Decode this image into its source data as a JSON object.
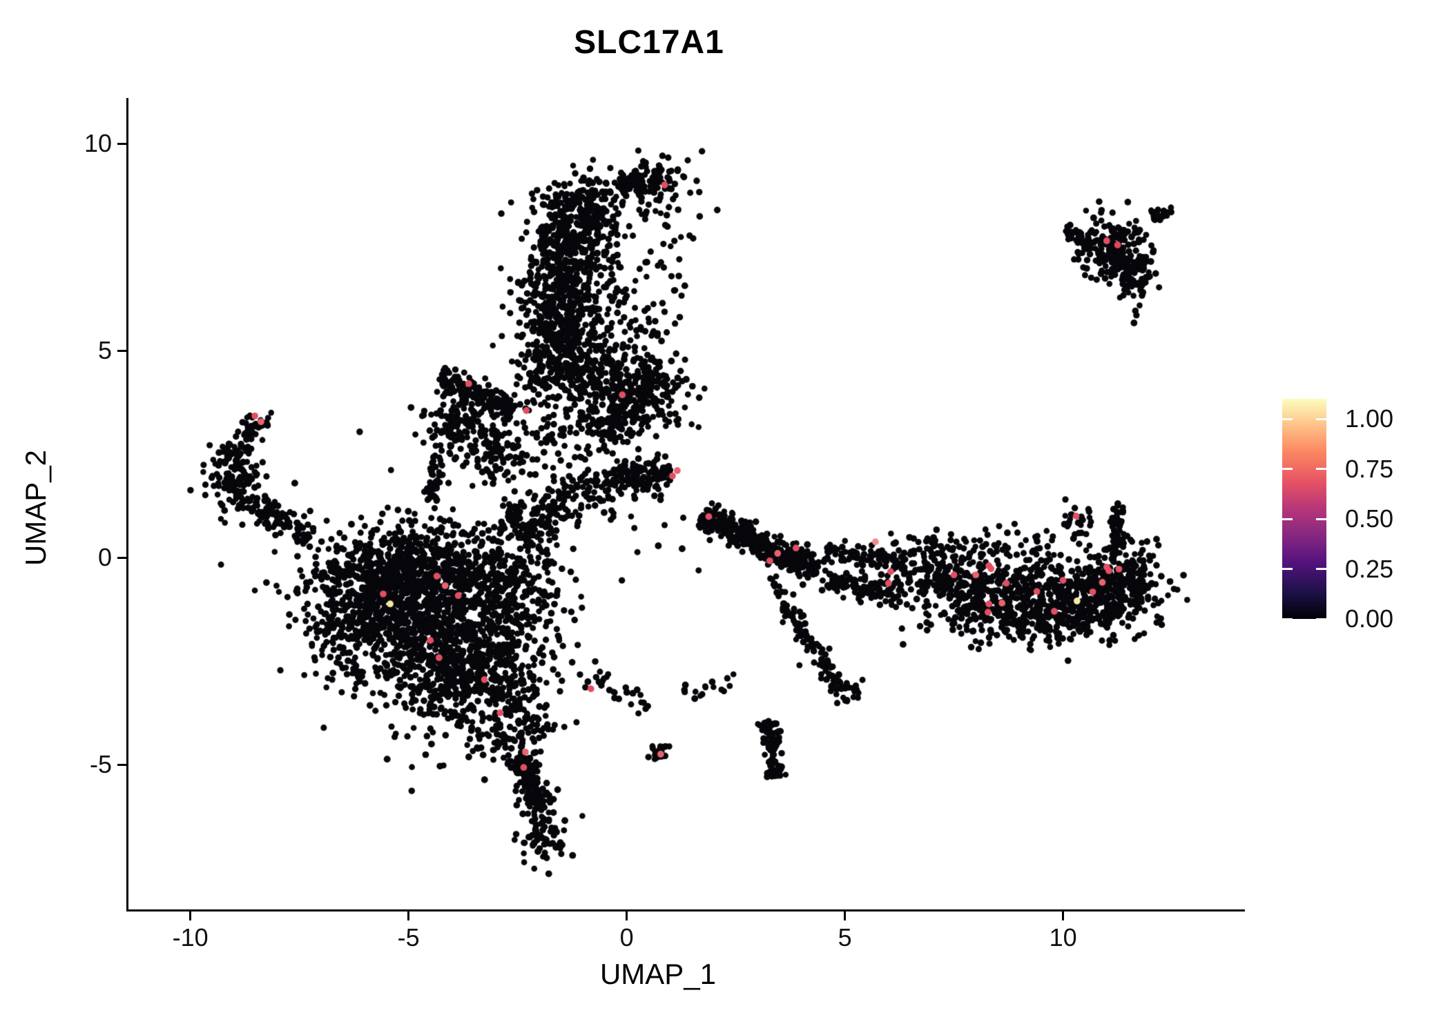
{
  "chart_data": {
    "type": "scatter",
    "title": "SLC17A1",
    "xlabel": "UMAP_1",
    "ylabel": "UMAP_2",
    "grid": false,
    "axes": {
      "xlim": [
        -11.4,
        14.2
      ],
      "ylim": [
        -8.6,
        11.1
      ],
      "x_ticks": [
        {
          "value": -10,
          "label": "-10"
        },
        {
          "value": -5,
          "label": "-5"
        },
        {
          "value": 0,
          "label": "0"
        },
        {
          "value": 5,
          "label": "5"
        },
        {
          "value": 10,
          "label": "10"
        }
      ],
      "y_ticks": [
        {
          "value": 10,
          "label": "10"
        },
        {
          "value": 5,
          "label": "5"
        },
        {
          "value": 0,
          "label": "0"
        },
        {
          "value": -5,
          "label": "-5"
        }
      ]
    },
    "legend": {
      "position": "right",
      "ticks": [
        {
          "value": 1.0,
          "label": "1.00"
        },
        {
          "value": 0.75,
          "label": "0.75"
        },
        {
          "value": 0.5,
          "label": "0.50"
        },
        {
          "value": 0.25,
          "label": "0.25"
        },
        {
          "value": 0.0,
          "label": "0.00"
        }
      ],
      "colormap": "magma",
      "colormap_stops": [
        "#000004",
        "#1d1147",
        "#51127c",
        "#822681",
        "#b63679",
        "#e65164",
        "#fb8861",
        "#fec287",
        "#fcfdbf"
      ]
    },
    "point_style": {
      "radius": 4.6,
      "base_color": "#07070b"
    },
    "clusters": [
      {
        "kind": "blob",
        "cx": -4.9,
        "cy": -1.3,
        "sx": 1.05,
        "sy": 0.95,
        "n": 820
      },
      {
        "kind": "blob",
        "cx": -3.7,
        "cy": -2.7,
        "sx": 0.75,
        "sy": 0.75,
        "n": 420
      },
      {
        "kind": "blob",
        "cx": -5.7,
        "cy": -0.45,
        "sx": 0.85,
        "sy": 0.5,
        "n": 300
      },
      {
        "kind": "blob",
        "cx": -3.1,
        "cy": -0.6,
        "sx": 0.8,
        "sy": 0.7,
        "n": 260
      },
      {
        "kind": "blob",
        "cx": -4.2,
        "cy": 0.2,
        "sx": 0.9,
        "sy": 0.4,
        "n": 150
      },
      {
        "kind": "blob",
        "cx": -6.3,
        "cy": -1.6,
        "sx": 0.5,
        "sy": 0.6,
        "n": 130
      },
      {
        "kind": "blob",
        "cx": -2.7,
        "cy": -3.9,
        "sx": 0.5,
        "sy": 0.6,
        "n": 150
      },
      {
        "kind": "blob",
        "cx": -2.35,
        "cy": -1.6,
        "sx": 0.4,
        "sy": 0.9,
        "n": 110
      },
      {
        "kind": "blob",
        "cx": -4.6,
        "cy": -1.4,
        "sx": 1.6,
        "sy": 1.4,
        "n": 180
      },
      {
        "kind": "line",
        "x1": -2.45,
        "y1": -4.8,
        "x2": -1.95,
        "y2": -6.1,
        "w": 0.32,
        "n": 160
      },
      {
        "kind": "blob",
        "cx": -1.95,
        "cy": -6.6,
        "sx": 0.28,
        "sy": 0.38,
        "n": 80
      },
      {
        "kind": "line",
        "x1": -7.3,
        "y1": 0.45,
        "x2": -8.6,
        "y2": 1.35,
        "w": 0.3,
        "n": 90
      },
      {
        "kind": "blob",
        "cx": -8.95,
        "cy": 1.75,
        "sx": 0.35,
        "sy": 0.4,
        "n": 110
      },
      {
        "kind": "line",
        "x1": -9.15,
        "y1": 2.2,
        "x2": -8.45,
        "y2": 3.35,
        "w": 0.25,
        "n": 70
      },
      {
        "kind": "blob",
        "cx": -8.4,
        "cy": 3.25,
        "sx": 0.15,
        "sy": 0.12,
        "n": 12
      },
      {
        "kind": "line",
        "x1": -4.3,
        "y1": 4.35,
        "x2": -2.6,
        "y2": 3.5,
        "w": 0.3,
        "n": 140
      },
      {
        "kind": "blob",
        "cx": -3.7,
        "cy": 3.1,
        "sx": 0.55,
        "sy": 0.5,
        "n": 160
      },
      {
        "kind": "line",
        "x1": -4.35,
        "y1": 2.5,
        "x2": -4.45,
        "y2": 1.35,
        "w": 0.18,
        "n": 45
      },
      {
        "kind": "blob",
        "cx": -2.9,
        "cy": 2.5,
        "sx": 0.4,
        "sy": 0.4,
        "n": 55
      },
      {
        "kind": "blob",
        "cx": 0.55,
        "cy": 9.1,
        "sx": 0.38,
        "sy": 0.28,
        "n": 100
      },
      {
        "kind": "blob",
        "cx": -0.95,
        "cy": 8.45,
        "sx": 0.5,
        "sy": 0.4,
        "n": 190
      },
      {
        "kind": "blob",
        "cx": -1.25,
        "cy": 7.6,
        "sx": 0.45,
        "sy": 0.5,
        "n": 200
      },
      {
        "kind": "blob",
        "cx": -1.45,
        "cy": 6.6,
        "sx": 0.45,
        "sy": 0.6,
        "n": 210
      },
      {
        "kind": "blob",
        "cx": -1.55,
        "cy": 5.5,
        "sx": 0.55,
        "sy": 0.6,
        "n": 230
      },
      {
        "kind": "blob",
        "cx": -1.3,
        "cy": 4.4,
        "sx": 0.65,
        "sy": 0.5,
        "n": 240
      },
      {
        "kind": "blob",
        "cx": 0.3,
        "cy": 4.1,
        "sx": 0.55,
        "sy": 0.5,
        "n": 230
      },
      {
        "kind": "blob",
        "cx": -0.35,
        "cy": 3.3,
        "sx": 0.5,
        "sy": 0.35,
        "n": 120
      },
      {
        "kind": "blob",
        "cx": -0.45,
        "cy": 5.9,
        "sx": 0.45,
        "sy": 1.1,
        "n": 70
      },
      {
        "kind": "blob",
        "cx": 0.75,
        "cy": 7.6,
        "sx": 0.45,
        "sy": 0.8,
        "n": 40
      },
      {
        "kind": "line",
        "x1": -0.2,
        "y1": 8.9,
        "x2": 0.3,
        "y2": 9.15,
        "w": 0.2,
        "n": 40
      },
      {
        "kind": "blob",
        "cx": 0.6,
        "cy": 5.75,
        "sx": 0.3,
        "sy": 0.3,
        "n": 20
      },
      {
        "kind": "line",
        "x1": -2.6,
        "y1": 0.7,
        "x2": -0.3,
        "y2": 1.9,
        "w": 0.5,
        "n": 200
      },
      {
        "kind": "line",
        "x1": -0.3,
        "y1": 1.9,
        "x2": 1.0,
        "y2": 2.05,
        "w": 0.4,
        "n": 120
      },
      {
        "kind": "blob",
        "cx": -1.6,
        "cy": 2.6,
        "sx": 0.7,
        "sy": 0.5,
        "n": 70
      },
      {
        "kind": "line",
        "x1": 1.75,
        "y1": 1.05,
        "x2": 3.1,
        "y2": 0.3,
        "w": 0.3,
        "n": 200
      },
      {
        "kind": "line",
        "x1": 3.1,
        "y1": 0.3,
        "x2": 4.4,
        "y2": -0.25,
        "w": 0.3,
        "n": 160
      },
      {
        "kind": "line",
        "x1": 4.5,
        "y1": 0.1,
        "x2": 6.2,
        "y2": -0.1,
        "w": 0.25,
        "n": 80
      },
      {
        "kind": "line",
        "x1": 4.5,
        "y1": -0.5,
        "x2": 6.3,
        "y2": -0.85,
        "w": 0.25,
        "n": 110
      },
      {
        "kind": "blob",
        "cx": 8.3,
        "cy": -0.8,
        "sx": 1.1,
        "sy": 0.5,
        "n": 460
      },
      {
        "kind": "blob",
        "cx": 10.7,
        "cy": -0.9,
        "sx": 0.75,
        "sy": 0.45,
        "n": 320
      },
      {
        "kind": "blob",
        "cx": 11.5,
        "cy": -0.55,
        "sx": 0.35,
        "sy": 0.45,
        "n": 120
      },
      {
        "kind": "line",
        "x1": 11.15,
        "y1": -0.2,
        "x2": 11.3,
        "y2": 1.3,
        "w": 0.18,
        "n": 55
      },
      {
        "kind": "blob",
        "cx": 10.35,
        "cy": 0.75,
        "sx": 0.2,
        "sy": 0.3,
        "n": 25
      },
      {
        "kind": "line",
        "x1": 6.6,
        "y1": 0.2,
        "x2": 9.8,
        "y2": 0.35,
        "w": 0.35,
        "n": 55
      },
      {
        "kind": "blob",
        "cx": 9.3,
        "cy": -1.55,
        "sx": 0.9,
        "sy": 0.3,
        "n": 140
      },
      {
        "kind": "blob",
        "cx": 6.7,
        "cy": -0.15,
        "sx": 0.5,
        "sy": 0.35,
        "n": 60
      },
      {
        "kind": "blob",
        "cx": 11.2,
        "cy": 7.4,
        "sx": 0.4,
        "sy": 0.35,
        "n": 150
      },
      {
        "kind": "line",
        "x1": 10.05,
        "y1": 7.9,
        "x2": 10.8,
        "y2": 7.55,
        "w": 0.18,
        "n": 40
      },
      {
        "kind": "blob",
        "cx": 11.62,
        "cy": 6.85,
        "sx": 0.28,
        "sy": 0.4,
        "n": 70
      },
      {
        "kind": "line",
        "x1": 12.0,
        "y1": 8.2,
        "x2": 12.5,
        "y2": 8.45,
        "w": 0.15,
        "n": 22
      },
      {
        "kind": "blob",
        "cx": 11.3,
        "cy": 8.1,
        "sx": 0.4,
        "sy": 0.25,
        "n": 15
      },
      {
        "kind": "line",
        "x1": 3.25,
        "y1": -3.95,
        "x2": 3.4,
        "y2": -5.3,
        "w": 0.22,
        "n": 90
      },
      {
        "kind": "line",
        "x1": 3.55,
        "y1": -1.05,
        "x2": 4.9,
        "y2": -3.2,
        "w": 0.2,
        "n": 85
      },
      {
        "kind": "blob",
        "cx": 4.95,
        "cy": -3.3,
        "sx": 0.18,
        "sy": 0.15,
        "n": 25
      },
      {
        "kind": "blob",
        "cx": 0.72,
        "cy": -4.72,
        "sx": 0.15,
        "sy": 0.1,
        "n": 18
      },
      {
        "kind": "line",
        "x1": -1.15,
        "y1": -2.7,
        "x2": 0.5,
        "y2": -3.6,
        "w": 0.3,
        "n": 30
      },
      {
        "kind": "line",
        "x1": 1.3,
        "y1": -3.3,
        "x2": 2.6,
        "y2": -2.9,
        "w": 0.25,
        "n": 16
      },
      {
        "kind": "line",
        "x1": 3.3,
        "y1": -0.5,
        "x2": 3.6,
        "y2": -1.0,
        "w": 0.15,
        "n": 12
      },
      {
        "kind": "blob",
        "cx": 0.3,
        "cy": 0.6,
        "sx": 0.8,
        "sy": 0.5,
        "n": 14
      }
    ],
    "highlight_points": [
      {
        "x": -8.52,
        "y": 3.42,
        "c": "#e24f63"
      },
      {
        "x": -8.38,
        "y": 3.28,
        "c": "#e8636f"
      },
      {
        "x": -3.62,
        "y": 4.2,
        "c": "#e24f63"
      },
      {
        "x": -2.3,
        "y": 3.55,
        "c": "#e24f63"
      },
      {
        "x": -0.1,
        "y": 3.93,
        "c": "#e24f63"
      },
      {
        "x": 0.87,
        "y": 9.0,
        "c": "#e24f63"
      },
      {
        "x": 1.05,
        "y": 1.97,
        "c": "#e24f63"
      },
      {
        "x": 1.16,
        "y": 2.1,
        "c": "#e8636f"
      },
      {
        "x": 1.88,
        "y": 0.99,
        "c": "#e24f63"
      },
      {
        "x": 3.28,
        "y": -0.08,
        "c": "#e24f63"
      },
      {
        "x": 3.46,
        "y": 0.1,
        "c": "#e8636f"
      },
      {
        "x": 3.88,
        "y": 0.23,
        "c": "#e24f63"
      },
      {
        "x": 5.7,
        "y": 0.38,
        "c": "#ef8d8d"
      },
      {
        "x": 6.05,
        "y": -0.34,
        "c": "#e24f63"
      },
      {
        "x": 6.0,
        "y": -0.62,
        "c": "#e24f63"
      },
      {
        "x": 7.5,
        "y": -0.42,
        "c": "#e24f63"
      },
      {
        "x": 8.0,
        "y": -0.42,
        "c": "#e8636f"
      },
      {
        "x": 8.3,
        "y": -0.2,
        "c": "#e24f63"
      },
      {
        "x": 8.35,
        "y": -0.27,
        "c": "#e24f63"
      },
      {
        "x": 8.7,
        "y": -0.62,
        "c": "#e24f63"
      },
      {
        "x": 8.3,
        "y": -1.12,
        "c": "#e24f63"
      },
      {
        "x": 8.6,
        "y": -1.1,
        "c": "#e8636f"
      },
      {
        "x": 8.28,
        "y": -1.32,
        "c": "#e24f63"
      },
      {
        "x": 9.4,
        "y": -0.82,
        "c": "#e24f63"
      },
      {
        "x": 10.0,
        "y": -0.55,
        "c": "#e24f63"
      },
      {
        "x": 9.8,
        "y": -1.3,
        "c": "#e24f63"
      },
      {
        "x": 10.68,
        "y": -0.83,
        "c": "#e24f63"
      },
      {
        "x": 10.9,
        "y": -0.6,
        "c": "#e8636f"
      },
      {
        "x": 11.0,
        "y": -0.23,
        "c": "#e24f63"
      },
      {
        "x": 11.28,
        "y": -0.28,
        "c": "#e24f63"
      },
      {
        "x": 11.05,
        "y": -0.32,
        "c": "#e24f63"
      },
      {
        "x": 10.3,
        "y": 1.0,
        "c": "#e24f63"
      },
      {
        "x": -5.58,
        "y": -0.88,
        "c": "#e24f63"
      },
      {
        "x": -4.35,
        "y": -0.45,
        "c": "#e24f63"
      },
      {
        "x": -4.16,
        "y": -0.68,
        "c": "#e8636f"
      },
      {
        "x": -3.86,
        "y": -0.92,
        "c": "#e24f63"
      },
      {
        "x": -4.5,
        "y": -2.0,
        "c": "#e24f63"
      },
      {
        "x": -4.3,
        "y": -2.42,
        "c": "#e24f63"
      },
      {
        "x": -3.26,
        "y": -2.95,
        "c": "#e24f63"
      },
      {
        "x": -2.9,
        "y": -3.75,
        "c": "#e24f63"
      },
      {
        "x": -2.32,
        "y": -4.7,
        "c": "#e8636f"
      },
      {
        "x": -2.36,
        "y": -5.07,
        "c": "#e24f63"
      },
      {
        "x": -0.82,
        "y": -3.17,
        "c": "#e24f63"
      },
      {
        "x": 0.78,
        "y": -4.75,
        "c": "#e8636f"
      },
      {
        "x": 11.0,
        "y": 7.65,
        "c": "#e24f63"
      },
      {
        "x": 11.25,
        "y": 7.55,
        "c": "#e8435c"
      },
      {
        "x": 10.32,
        "y": -1.05,
        "c": "#f6eca4"
      },
      {
        "x": -5.42,
        "y": -1.12,
        "c": "#f2e79e"
      }
    ]
  }
}
